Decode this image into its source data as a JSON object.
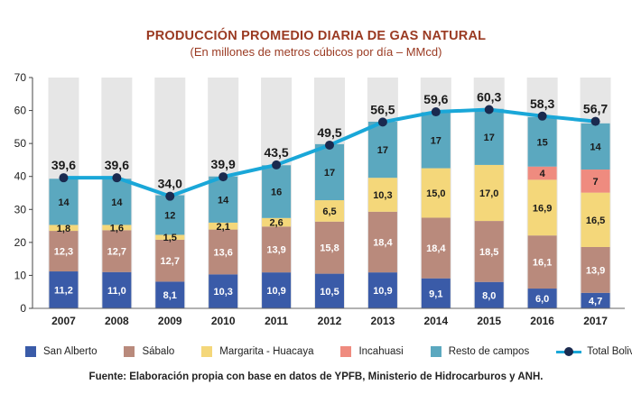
{
  "title": "PRODUCCIÓN PROMEDIO DIARIA DE GAS NATURAL",
  "subtitle": "(En millones de metros cúbicos por día – MMcd)",
  "source": "Fuente: Elaboración propia con base en datos de YPFB, Ministerio de Hidrocarburos y ANH.",
  "colors": {
    "san_alberto": "#3a5ba8",
    "sabalo": "#b98a7c",
    "margarita": "#f4d77a",
    "incahuasi": "#ef8b7f",
    "resto": "#5ba8bf",
    "total": "#1aa7d8",
    "marker": "#1a2a4f",
    "column_bg": "#e6e6e6"
  },
  "chart_data": {
    "type": "bar",
    "stacked": true,
    "categories": [
      "2007",
      "2008",
      "2009",
      "2010",
      "2011",
      "2012",
      "2013",
      "2014",
      "2015",
      "2016",
      "2017"
    ],
    "series": [
      {
        "name": "San Alberto",
        "key": "san_alberto",
        "values": [
          11.2,
          11.0,
          8.1,
          10.3,
          10.9,
          10.5,
          10.9,
          9.1,
          8.0,
          6.0,
          4.7
        ],
        "labels": [
          "11,2",
          "11,0",
          "8,1",
          "10,3",
          "10,9",
          "10,5",
          "10,9",
          "9,1",
          "8,0",
          "6,0",
          "4,7"
        ]
      },
      {
        "name": "Sábalo",
        "key": "sabalo",
        "values": [
          12.3,
          12.7,
          12.7,
          13.6,
          13.9,
          15.8,
          18.4,
          18.4,
          18.5,
          16.1,
          13.9
        ],
        "labels": [
          "12,3",
          "12,7",
          "12,7",
          "13,6",
          "13,9",
          "15,8",
          "18,4",
          "18,4",
          "18,5",
          "16,1",
          "13,9"
        ]
      },
      {
        "name": "Margarita - Huacaya",
        "key": "margarita",
        "values": [
          1.8,
          1.6,
          1.5,
          2.1,
          2.6,
          6.5,
          10.3,
          15.0,
          17.0,
          16.9,
          16.5
        ],
        "labels": [
          "1,8",
          "1,6",
          "1,5",
          "2,1",
          "2,6",
          "6,5",
          "10,3",
          "15,0",
          "17,0",
          "16,9",
          "16,5"
        ]
      },
      {
        "name": "Incahuasi",
        "key": "incahuasi",
        "values": [
          0,
          0,
          0,
          0,
          0,
          0,
          0,
          0,
          0,
          4,
          7
        ],
        "labels": [
          "",
          "",
          "",
          "",
          "",
          "",
          "",
          "",
          "",
          "4",
          "7"
        ]
      },
      {
        "name": "Resto de campos",
        "key": "resto",
        "values": [
          14,
          14,
          12,
          14,
          16,
          17,
          17,
          17,
          17,
          15,
          14
        ],
        "labels": [
          "14",
          "14",
          "12",
          "14",
          "16",
          "17",
          "17",
          "17",
          "17",
          "15",
          "14"
        ]
      }
    ],
    "line": {
      "name": "Total Bolivia",
      "key": "total",
      "values": [
        39.6,
        39.6,
        34.0,
        39.9,
        43.5,
        49.5,
        56.5,
        59.6,
        60.3,
        58.3,
        56.7
      ],
      "labels": [
        "39,6",
        "39,6",
        "34,0",
        "39,9",
        "43,5",
        "49,5",
        "56,5",
        "59,6",
        "60,3",
        "58,3",
        "56,7"
      ]
    },
    "ylim": [
      0,
      70
    ],
    "yticks": [
      "0",
      "10",
      "20",
      "30",
      "40",
      "50",
      "60",
      "70"
    ],
    "grid": false,
    "legend": "bottom"
  }
}
